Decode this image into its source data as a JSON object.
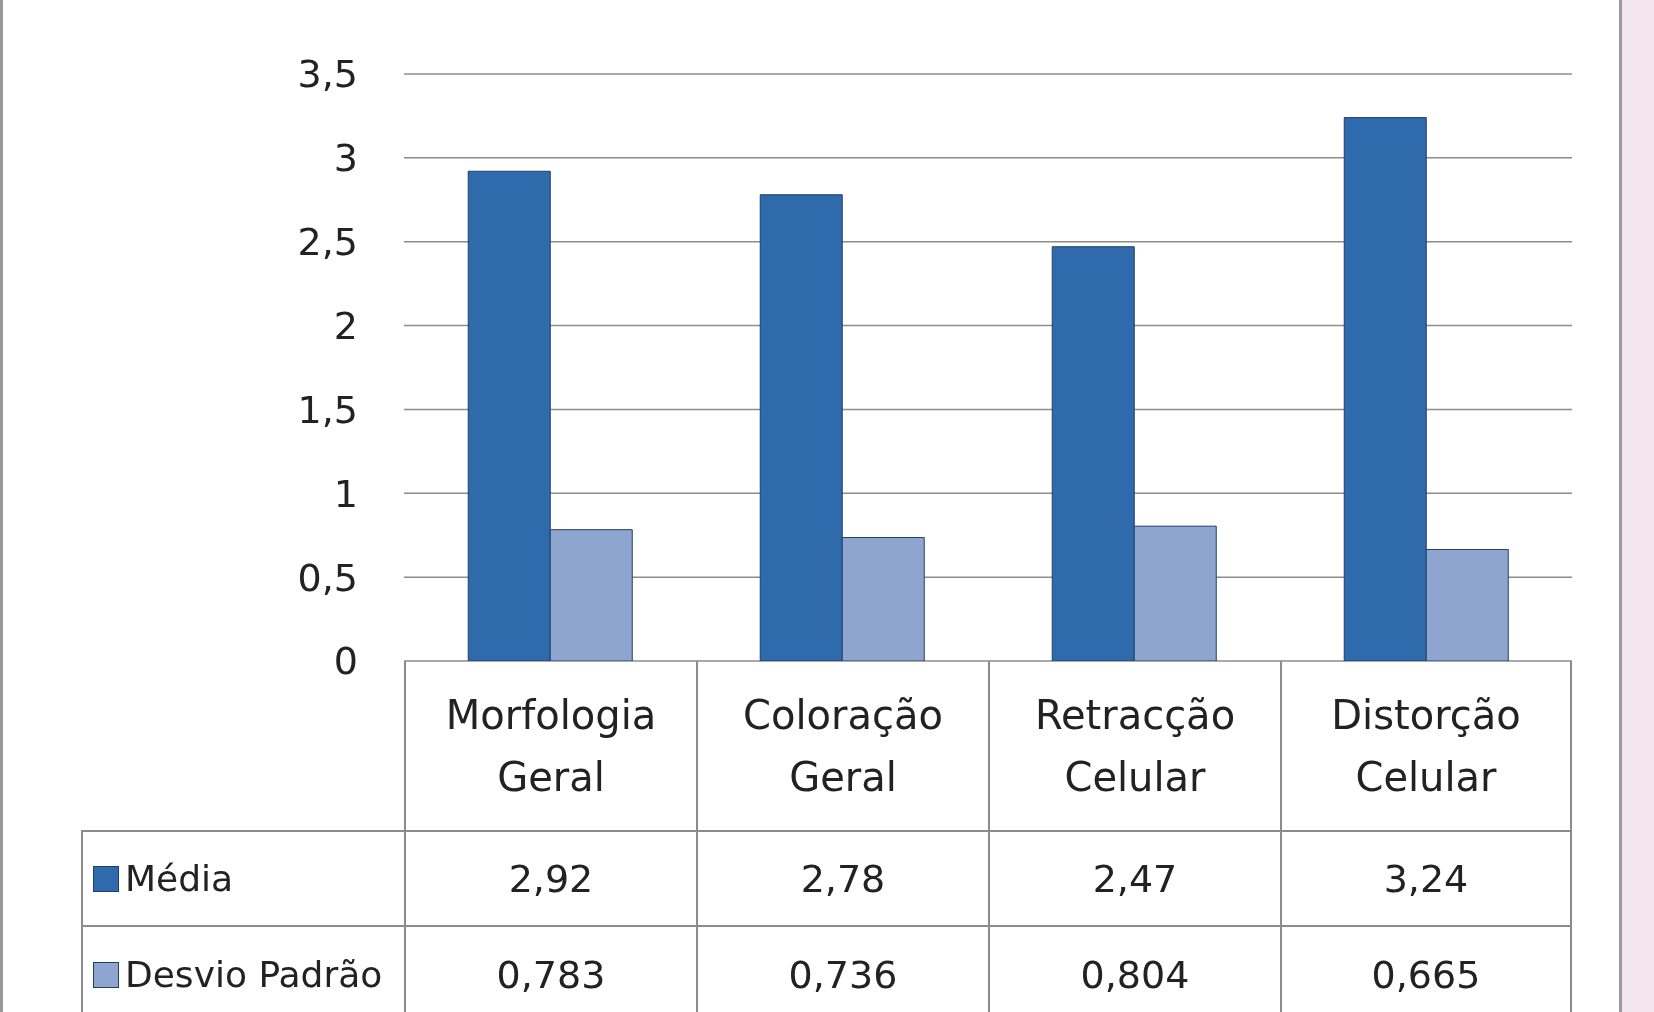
{
  "chart_data": {
    "type": "bar",
    "categories": [
      "Morfologia Geral",
      "Coloração Geral",
      "Retracção Celular",
      "Distorção Celular"
    ],
    "series": [
      {
        "name": "Média",
        "color": "#2f6aad",
        "values": [
          2.92,
          2.78,
          2.47,
          3.24
        ],
        "value_labels": [
          "2,92",
          "2,78",
          "2,47",
          "3,24"
        ]
      },
      {
        "name": "Desvio Padrão",
        "color": "#8ea6cf",
        "values": [
          0.783,
          0.736,
          0.804,
          0.665
        ],
        "value_labels": [
          "0,783",
          "0,736",
          "0,804",
          "0,665"
        ]
      }
    ],
    "ylim": [
      0,
      3.5
    ],
    "yticks": [
      0,
      {
        "value": 0.5,
        "label": "0,5"
      },
      1,
      {
        "value": 1.5,
        "label": "1,5"
      },
      2,
      {
        "value": 2.5,
        "label": "2,5"
      },
      3,
      {
        "value": 3.5,
        "label": "3,5"
      }
    ],
    "grid": "y",
    "legend": "bottom"
  }
}
